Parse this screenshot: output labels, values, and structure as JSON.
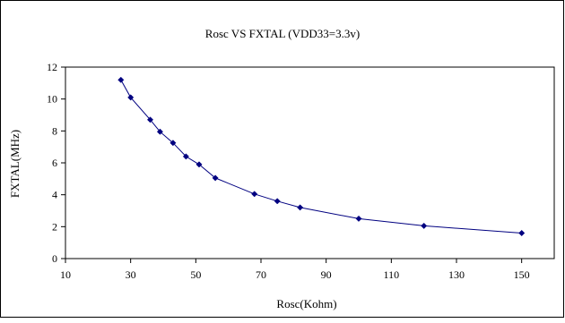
{
  "chart_data": {
    "type": "line",
    "title": "Rosc VS FXTAL (VDD33=3.3v)",
    "xlabel": "Rosc(Kohm)",
    "ylabel": "FXTAL(MHz)",
    "xlim": [
      10,
      160
    ],
    "ylim": [
      0,
      12
    ],
    "xticks": [
      10,
      30,
      50,
      70,
      90,
      110,
      130,
      150
    ],
    "yticks": [
      0,
      2,
      4,
      6,
      8,
      10,
      12
    ],
    "grid": false,
    "series": [
      {
        "x": [
          27,
          30,
          36,
          39,
          43,
          47,
          51,
          56,
          68,
          75,
          82,
          100,
          120,
          150
        ],
        "y": [
          11.2,
          10.1,
          8.7,
          7.95,
          7.25,
          6.4,
          5.9,
          5.05,
          4.05,
          3.6,
          3.2,
          2.5,
          2.05,
          1.6
        ]
      }
    ],
    "colors": {
      "line": "#000080",
      "marker": "#000080",
      "axis": "#000000",
      "frame": "#000000"
    }
  }
}
